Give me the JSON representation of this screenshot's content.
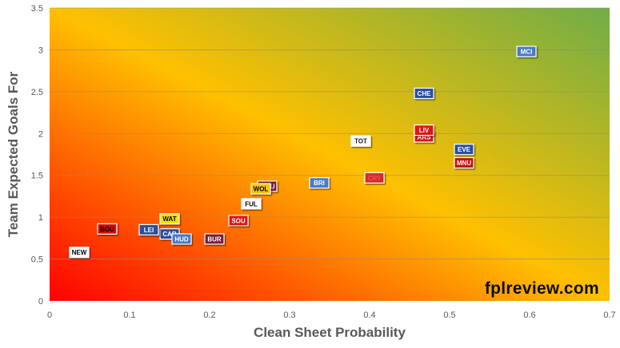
{
  "chart_data": {
    "type": "scatter",
    "xlabel": "Clean Sheet Probability",
    "ylabel": "Team Expected Goals For",
    "xlim": [
      0,
      0.7
    ],
    "ylim": [
      0,
      3.5
    ],
    "x_ticks": [
      "0",
      "0.1",
      "0.2",
      "0.3",
      "0.4",
      "0.5",
      "0.6",
      "0.7"
    ],
    "y_ticks": [
      "0",
      "0.5",
      "1",
      "1.5",
      "2",
      "2.5",
      "3",
      "3.5"
    ],
    "grid": "horizontal",
    "background": "gradient red (bottom-left) to yellow to green (top-right)",
    "watermark": "fplreview.com",
    "points": [
      {
        "label": "MCI",
        "x": 0.596,
        "y": 2.98,
        "fill": "#4a7ac8",
        "text": "#ffffff"
      },
      {
        "label": "CHE",
        "x": 0.468,
        "y": 2.48,
        "fill": "#2b4f9e",
        "text": "#ffffff"
      },
      {
        "label": "ARS",
        "x": 0.468,
        "y": 1.96,
        "fill": "#e01515",
        "text": "#ffffff"
      },
      {
        "label": "LIV",
        "x": 0.468,
        "y": 2.04,
        "fill": "#e01515",
        "text": "#ffffff"
      },
      {
        "label": "EVE",
        "x": 0.518,
        "y": 1.81,
        "fill": "#2b4f9e",
        "text": "#ffffff"
      },
      {
        "label": "MNU",
        "x": 0.518,
        "y": 1.65,
        "fill": "#cc1111",
        "text": "#ffffff"
      },
      {
        "label": "TOT",
        "x": 0.389,
        "y": 1.91,
        "fill": "#ffffff",
        "text": "#1a1a1a"
      },
      {
        "label": "CRY",
        "x": 0.406,
        "y": 1.47,
        "fill": "#d42a2a",
        "text": "#e8505a"
      },
      {
        "label": "BRI",
        "x": 0.337,
        "y": 1.41,
        "fill": "#4a7ac8",
        "text": "#ffffff"
      },
      {
        "label": "WHU",
        "x": 0.272,
        "y": 1.37,
        "fill": "#7a1f3a",
        "text": "#ffffff"
      },
      {
        "label": "WOL",
        "x": 0.264,
        "y": 1.34,
        "fill": "#f5c400",
        "text": "#000000"
      },
      {
        "label": "FUL",
        "x": 0.252,
        "y": 1.16,
        "fill": "#ffffff",
        "text": "#000000"
      },
      {
        "label": "SOU",
        "x": 0.236,
        "y": 0.96,
        "fill": "#e01515",
        "text": "#ffffff"
      },
      {
        "label": "BUR",
        "x": 0.206,
        "y": 0.74,
        "fill": "#7a1f3a",
        "text": "#ffffff"
      },
      {
        "label": "WAT",
        "x": 0.15,
        "y": 0.98,
        "fill": "#f5e200",
        "text": "#000000"
      },
      {
        "label": "CAR",
        "x": 0.15,
        "y": 0.8,
        "fill": "#2b4f9e",
        "text": "#ffffff"
      },
      {
        "label": "HUD",
        "x": 0.165,
        "y": 0.74,
        "fill": "#4a7ac8",
        "text": "#ffffff"
      },
      {
        "label": "LEI",
        "x": 0.124,
        "y": 0.85,
        "fill": "#2b4f9e",
        "text": "#ffffff"
      },
      {
        "label": "BOU",
        "x": 0.072,
        "y": 0.86,
        "fill": "#cc1111",
        "text": "#000000"
      },
      {
        "label": "NEW",
        "x": 0.037,
        "y": 0.58,
        "fill": "#ffffff",
        "text": "#000000"
      }
    ]
  }
}
